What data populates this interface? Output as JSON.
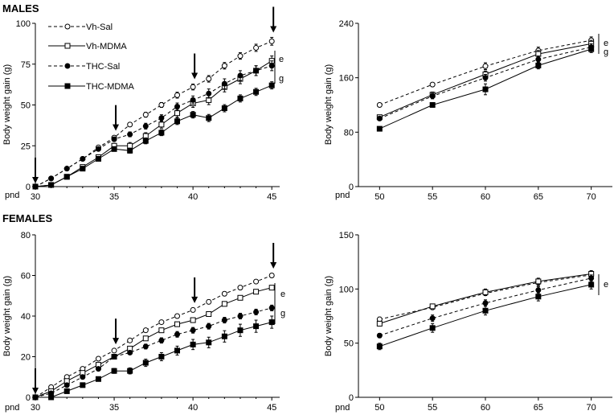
{
  "sections": {
    "males": "MALES",
    "females": "FEMALES"
  },
  "legend": [
    "Vh-Sal",
    "Vh-MDMA",
    "THC-Sal",
    "THC-MDMA"
  ],
  "x_prefix": "pnd",
  "chart_data": [
    {
      "id": "males-adolescent",
      "type": "line",
      "ylabel": "Body weight gain (g)",
      "xlim": [
        30,
        45.5
      ],
      "ylim": [
        0,
        100
      ],
      "xticks": [
        30,
        35,
        40,
        45
      ],
      "yticks": [
        0,
        25,
        50,
        75,
        100
      ],
      "x": [
        30,
        31,
        32,
        33,
        34,
        35,
        36,
        37,
        38,
        39,
        40,
        41,
        42,
        43,
        44,
        45
      ],
      "series": [
        {
          "name": "Vh-Sal",
          "marker": "open-circle",
          "dash": true,
          "values": [
            0,
            5,
            11,
            17,
            24,
            30,
            38,
            44,
            50,
            56,
            61,
            66,
            74,
            80,
            85,
            89
          ],
          "err": [
            0,
            0.6,
            0.8,
            1,
            1,
            1.2,
            1.2,
            1.5,
            1.5,
            1.8,
            1.8,
            2,
            2,
            2,
            2.2,
            2.4
          ]
        },
        {
          "name": "Vh-MDMA",
          "marker": "open-square",
          "dash": false,
          "values": [
            0,
            1,
            6,
            12,
            18,
            25,
            25,
            31,
            38,
            45,
            51,
            53,
            61,
            66,
            71,
            77
          ],
          "err": [
            0,
            0.5,
            1,
            1,
            1.2,
            1.5,
            2,
            2,
            2.2,
            2.5,
            2.5,
            2.8,
            3,
            3,
            3,
            3
          ]
        },
        {
          "name": "THC-Sal",
          "marker": "filled-circle",
          "dash": true,
          "values": [
            0,
            5,
            11,
            17,
            23,
            29,
            32,
            37,
            42,
            49,
            53,
            57,
            63,
            68,
            71,
            74
          ],
          "err": [
            0,
            0.6,
            0.8,
            1,
            1,
            1.2,
            1.5,
            1.8,
            2,
            2.2,
            2.5,
            2.8,
            3,
            3,
            3,
            3
          ]
        },
        {
          "name": "THC-MDMA",
          "marker": "filled-square",
          "dash": false,
          "values": [
            0,
            1,
            6,
            11,
            17,
            23,
            22,
            28,
            33,
            40,
            44,
            42,
            48,
            54,
            58,
            62
          ],
          "err": [
            0,
            0.5,
            0.8,
            1,
            1,
            1.2,
            1.5,
            1.8,
            1.8,
            2,
            2,
            2.2,
            2.2,
            2.2,
            2.2,
            2.2
          ]
        }
      ],
      "arrows": [
        30,
        35,
        40,
        45
      ],
      "annotations": [
        "e",
        "g"
      ]
    },
    {
      "id": "males-adult",
      "type": "line",
      "ylabel": "Body weight gain (g)",
      "xlim": [
        48,
        72
      ],
      "ylim": [
        0,
        240
      ],
      "xticks": [
        50,
        55,
        60,
        65,
        70
      ],
      "yticks": [
        0,
        80,
        160,
        240
      ],
      "x": [
        50,
        55,
        60,
        65,
        70
      ],
      "series": [
        {
          "name": "Vh-Sal",
          "marker": "open-circle",
          "dash": true,
          "values": [
            120,
            150,
            177,
            200,
            215
          ],
          "err": [
            3,
            3,
            5,
            5,
            5
          ]
        },
        {
          "name": "Vh-MDMA",
          "marker": "open-square",
          "dash": false,
          "values": [
            102,
            135,
            165,
            195,
            210
          ],
          "err": [
            3,
            4,
            5,
            5,
            5
          ]
        },
        {
          "name": "THC-Sal",
          "marker": "filled-circle",
          "dash": true,
          "values": [
            100,
            133,
            160,
            187,
            205
          ],
          "err": [
            3,
            4,
            5,
            5,
            5
          ]
        },
        {
          "name": "THC-MDMA",
          "marker": "filled-square",
          "dash": false,
          "values": [
            85,
            120,
            143,
            178,
            202
          ],
          "err": [
            2,
            3,
            8,
            5,
            5
          ]
        }
      ],
      "annotations": [
        "e",
        "g"
      ]
    },
    {
      "id": "females-adolescent",
      "type": "line",
      "ylabel": "Body weight gain (g)",
      "xlim": [
        30,
        45.5
      ],
      "ylim": [
        0,
        80
      ],
      "xticks": [
        30,
        35,
        40,
        45
      ],
      "yticks": [
        0,
        20,
        40,
        60,
        80
      ],
      "x": [
        30,
        31,
        32,
        33,
        34,
        35,
        36,
        37,
        38,
        39,
        40,
        41,
        42,
        43,
        44,
        45
      ],
      "series": [
        {
          "name": "Vh-Sal",
          "marker": "open-circle",
          "dash": true,
          "values": [
            0,
            5,
            10,
            14,
            19,
            23,
            28,
            33,
            37,
            40,
            43,
            47,
            51,
            54,
            57,
            60
          ],
          "err": [
            0,
            0.4,
            0.5,
            0.6,
            0.7,
            0.7,
            0.8,
            0.9,
            0.9,
            1,
            1,
            1,
            1,
            1,
            1,
            1
          ]
        },
        {
          "name": "Vh-MDMA",
          "marker": "open-square",
          "dash": false,
          "values": [
            0,
            3,
            8,
            12,
            16,
            20,
            24,
            29,
            33,
            36,
            38,
            41,
            46,
            49,
            52,
            54
          ],
          "err": [
            0,
            0.4,
            0.5,
            0.6,
            0.7,
            0.7,
            0.8,
            0.9,
            0.9,
            1,
            1,
            1,
            1,
            1,
            1,
            1
          ]
        },
        {
          "name": "THC-Sal",
          "marker": "filled-circle",
          "dash": true,
          "values": [
            0,
            2,
            6,
            10,
            14,
            20,
            22,
            25,
            28,
            31,
            33,
            35,
            38,
            40,
            42,
            44
          ],
          "err": [
            0,
            0.4,
            0.5,
            0.6,
            0.8,
            1,
            1,
            1.2,
            1.3,
            1.4,
            1.4,
            1.4,
            1.4,
            1.4,
            1.4,
            1.4
          ]
        },
        {
          "name": "THC-MDMA",
          "marker": "filled-square",
          "dash": false,
          "values": [
            0,
            0,
            3,
            6,
            9,
            13,
            13,
            17,
            20,
            23,
            26,
            27,
            30,
            33,
            35,
            37
          ],
          "err": [
            0,
            0.4,
            0.5,
            0.8,
            1,
            1.2,
            1.5,
            1.8,
            2,
            2.2,
            2.5,
            2.6,
            2.8,
            3,
            3,
            3
          ]
        }
      ],
      "arrows": [
        30,
        35,
        40,
        45
      ],
      "annotations": [
        "e",
        "g"
      ]
    },
    {
      "id": "females-adult",
      "type": "line",
      "ylabel": "Body weight gain (g)",
      "xlim": [
        48,
        72
      ],
      "ylim": [
        0,
        150
      ],
      "xticks": [
        50,
        55,
        60,
        65,
        70
      ],
      "yticks": [
        0,
        50,
        100,
        150
      ],
      "x": [
        50,
        55,
        60,
        65,
        70
      ],
      "series": [
        {
          "name": "Vh-Sal",
          "marker": "open-circle",
          "dash": true,
          "values": [
            72,
            83,
            96,
            106,
            113
          ],
          "err": [
            2,
            2,
            2,
            3,
            3
          ]
        },
        {
          "name": "Vh-MDMA",
          "marker": "open-square",
          "dash": false,
          "values": [
            68,
            84,
            97,
            107,
            114
          ],
          "err": [
            2,
            2,
            3,
            3,
            3
          ]
        },
        {
          "name": "THC-Sal",
          "marker": "filled-circle",
          "dash": true,
          "values": [
            57,
            73,
            87,
            99,
            110
          ],
          "err": [
            2,
            3,
            3,
            3,
            3
          ]
        },
        {
          "name": "THC-MDMA",
          "marker": "filled-square",
          "dash": false,
          "values": [
            47,
            64,
            80,
            93,
            104
          ],
          "err": [
            3,
            4,
            4,
            4,
            4
          ]
        }
      ],
      "annotations": [
        "e"
      ]
    }
  ]
}
